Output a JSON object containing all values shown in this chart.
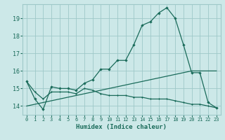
{
  "xlabel": "Humidex (Indice chaleur)",
  "xlim": [
    -0.5,
    23.5
  ],
  "ylim": [
    13.5,
    19.8
  ],
  "yticks": [
    14,
    15,
    16,
    17,
    18,
    19
  ],
  "xticks": [
    0,
    1,
    2,
    3,
    4,
    5,
    6,
    7,
    8,
    9,
    10,
    11,
    12,
    13,
    14,
    15,
    16,
    17,
    18,
    19,
    20,
    21,
    22,
    23
  ],
  "bg_color": "#cce8e8",
  "grid_color": "#9ec8c8",
  "line_color": "#1a6b5a",
  "series_main": {
    "x": [
      0,
      1,
      2,
      3,
      4,
      5,
      6,
      7,
      8,
      9,
      10,
      11,
      12,
      13,
      14,
      15,
      16,
      17,
      18,
      19,
      20,
      21,
      22,
      23
    ],
    "y": [
      15.4,
      14.4,
      13.8,
      15.1,
      15.0,
      15.0,
      14.9,
      15.3,
      15.5,
      16.1,
      16.1,
      16.6,
      16.6,
      17.5,
      18.6,
      18.8,
      19.3,
      19.6,
      19.0,
      17.5,
      15.9,
      15.9,
      14.2,
      13.9
    ]
  },
  "series_rising": {
    "x": [
      0,
      1,
      2,
      3,
      4,
      5,
      6,
      7,
      8,
      9,
      10,
      11,
      12,
      13,
      14,
      15,
      16,
      17,
      18,
      19,
      20,
      21,
      22,
      23
    ],
    "y": [
      14.0,
      14.1,
      14.2,
      14.3,
      14.4,
      14.5,
      14.6,
      14.7,
      14.8,
      14.9,
      15.0,
      15.1,
      15.2,
      15.3,
      15.4,
      15.5,
      15.6,
      15.7,
      15.8,
      15.9,
      16.0,
      16.0,
      16.0,
      16.0
    ]
  },
  "series_flat": {
    "x": [
      0,
      1,
      2,
      3,
      4,
      5,
      6,
      7,
      8,
      9,
      10,
      11,
      12,
      13,
      14,
      15,
      16,
      17,
      18,
      19,
      20,
      21,
      22,
      23
    ],
    "y": [
      15.4,
      14.8,
      14.4,
      14.8,
      14.8,
      14.8,
      14.7,
      15.0,
      14.9,
      14.7,
      14.6,
      14.6,
      14.6,
      14.5,
      14.5,
      14.4,
      14.4,
      14.4,
      14.3,
      14.2,
      14.1,
      14.1,
      14.0,
      13.9
    ]
  }
}
